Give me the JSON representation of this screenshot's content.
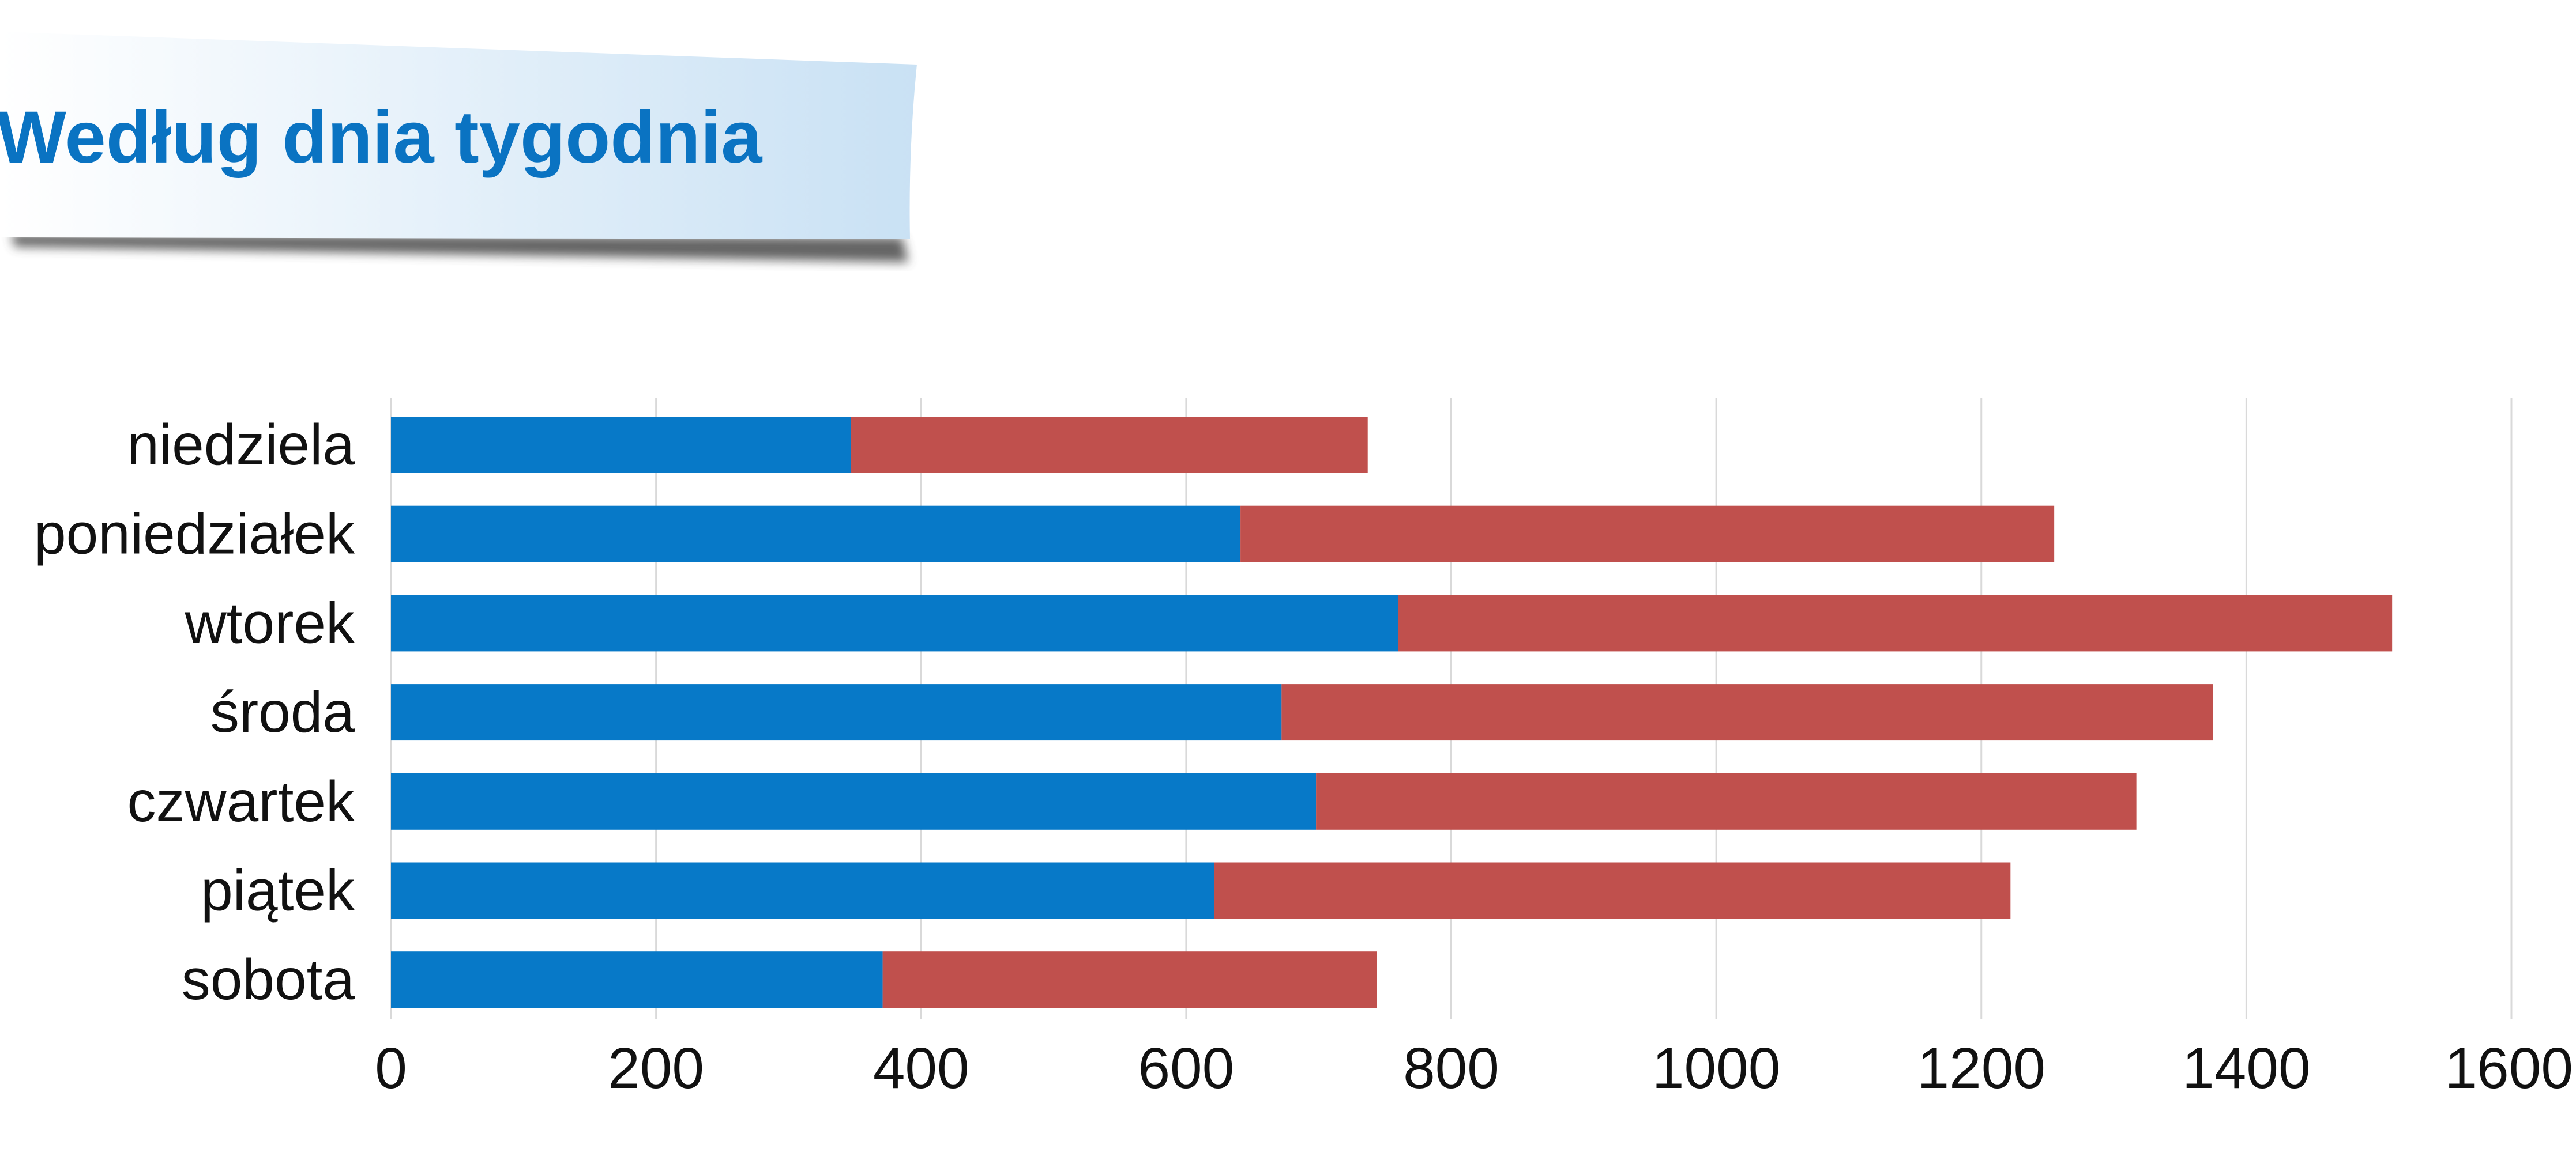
{
  "chart_data": {
    "type": "bar",
    "orientation": "horizontal",
    "stacked": true,
    "title": "Według dnia tygodnia",
    "categories": [
      "niedziela",
      "poniedziałek",
      "wtorek",
      "środa",
      "czwartek",
      "piątek",
      "sobota"
    ],
    "series": [
      {
        "color": "#0779c8",
        "values": [
          347,
          641,
          760,
          672,
          698,
          621,
          371
        ]
      },
      {
        "color": "#c0504d",
        "values": [
          390,
          614,
          750,
          703,
          619,
          601,
          373
        ]
      }
    ],
    "xlim": [
      0,
      1600
    ],
    "xticks": [
      "0",
      "200",
      "400",
      "600",
      "800",
      "1000",
      "1200",
      "1400",
      "1600"
    ],
    "grid": true,
    "legend": "none"
  },
  "colors": {
    "title": "#0a73c2",
    "gridline": "#d9d9d9",
    "banner_light": "#ffffff",
    "banner_dark": "#c9e1f4",
    "banner_shadow": "#4a4a4a"
  }
}
